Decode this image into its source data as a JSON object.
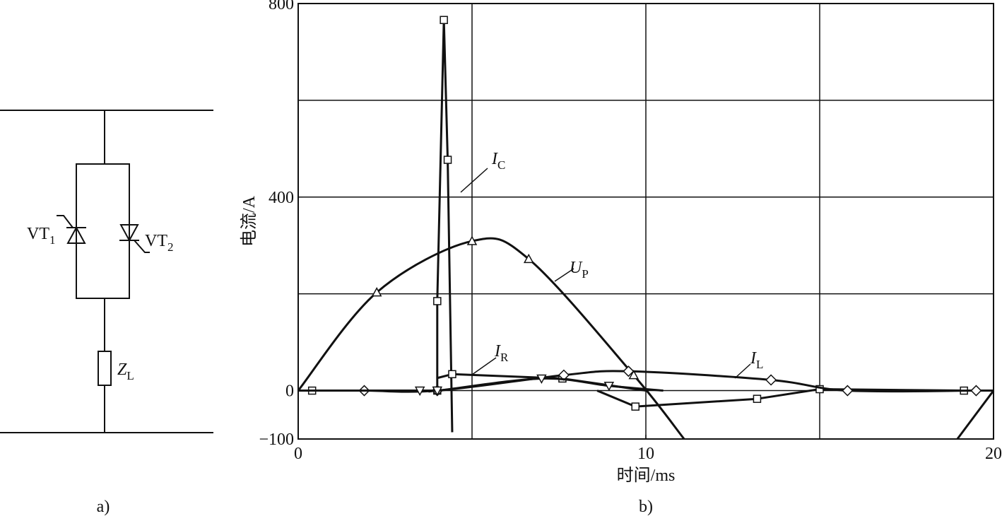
{
  "circuit": {
    "vt1": {
      "text": "VT",
      "sub": "1"
    },
    "vt2": {
      "text": "VT",
      "sub": "2"
    },
    "load": {
      "text": "Z",
      "sub": "L"
    },
    "caption": "a)"
  },
  "chart_data": {
    "type": "line",
    "caption": "b)",
    "x_label": "时间/ms",
    "y_label": "电流/A",
    "xlim": [
      0,
      20
    ],
    "ylim": [
      -100,
      800
    ],
    "xticks": [
      0,
      10,
      20
    ],
    "yticks": [
      {
        "value": -100,
        "label": "−100"
      },
      0,
      400,
      800
    ],
    "xgrid": [
      5,
      10,
      15,
      20
    ],
    "ygrid": [
      0,
      200,
      400,
      600,
      800
    ],
    "grid": true,
    "color": "#111111",
    "series": [
      {
        "label_main": "I",
        "label_sub": "C",
        "marker": "square",
        "smooth": false,
        "x": [
          0,
          0.4,
          4.0,
          4.0,
          4.19,
          4.3,
          4.43,
          null,
          8.6,
          9.7,
          13.2,
          15,
          19.15,
          20
        ],
        "values": [
          0,
          0,
          0,
          185,
          766,
          477,
          -86,
          null,
          0,
          -33,
          -17,
          3,
          0,
          0
        ]
      },
      {
        "label_main": "U",
        "label_sub": "P",
        "marker": "triangle-up",
        "smooth": true,
        "x": [
          0,
          2.26,
          5.0,
          6.63,
          9.65,
          11.1,
          null,
          18.96,
          20
        ],
        "values": [
          0,
          203,
          309,
          272,
          32,
          -100,
          null,
          -100,
          0
        ]
      },
      {
        "label_main": "I",
        "label_sub": "R",
        "marker": "square",
        "smooth": false,
        "x": [
          4.0,
          4.43,
          7.6,
          10.0
        ],
        "values": [
          26,
          34,
          25,
          0
        ]
      },
      {
        "label_main": "I",
        "label_sub": "L",
        "marker": "diamond",
        "smooth": true,
        "x": [
          0,
          1.9,
          4.0,
          7.64,
          9.5,
          13.6,
          15.8,
          19.5,
          20
        ],
        "values": [
          0,
          0,
          0,
          32,
          40,
          22,
          0,
          0,
          0
        ]
      },
      {
        "marker": "triangle-down",
        "smooth": true,
        "x": [
          0,
          3.5,
          4.0,
          7.0,
          8.94,
          10.5
        ],
        "values": [
          0,
          0,
          0,
          25,
          10,
          0
        ]
      }
    ]
  }
}
